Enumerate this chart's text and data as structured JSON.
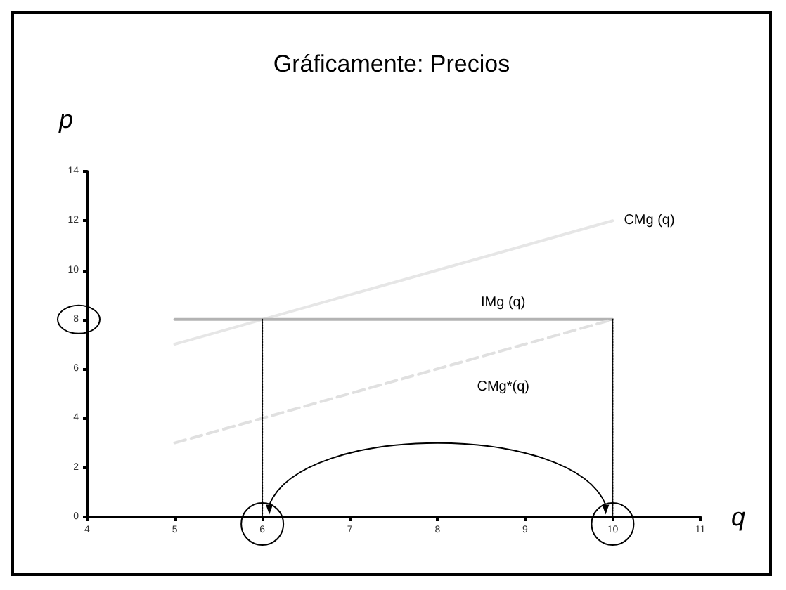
{
  "chart_data": {
    "type": "line",
    "title": "Gráficamente: Precios",
    "xlabel": "q",
    "ylabel": "p",
    "xlim": [
      4,
      11
    ],
    "xticks": [
      4,
      5,
      6,
      7,
      8,
      9,
      10,
      11
    ],
    "ylim": [
      0,
      14
    ],
    "yticks": [
      0,
      2,
      4,
      6,
      8,
      10,
      12,
      14
    ],
    "grid": false,
    "legend": false,
    "marker": "none",
    "series": [
      {
        "name": "CMg (q)",
        "color": "#e6e6e6",
        "x": [
          5,
          10
        ],
        "values": [
          7,
          12
        ]
      },
      {
        "name": "IMg (q)",
        "color": "#b3b3b3",
        "x": [
          5,
          10
        ],
        "values": [
          8,
          8
        ]
      },
      {
        "name": "CMg*(q)",
        "color": "#e0e0e0",
        "line_style": "dashed",
        "x": [
          5,
          10
        ],
        "values": [
          3,
          8
        ]
      },
      {
        "color": "#000000",
        "line_style": "dotted",
        "x": [
          6,
          6
        ],
        "values": [
          0,
          8
        ]
      },
      {
        "color": "#000000",
        "line_style": "dotted",
        "x": [
          10,
          10
        ],
        "values": [
          0,
          8
        ]
      }
    ]
  }
}
